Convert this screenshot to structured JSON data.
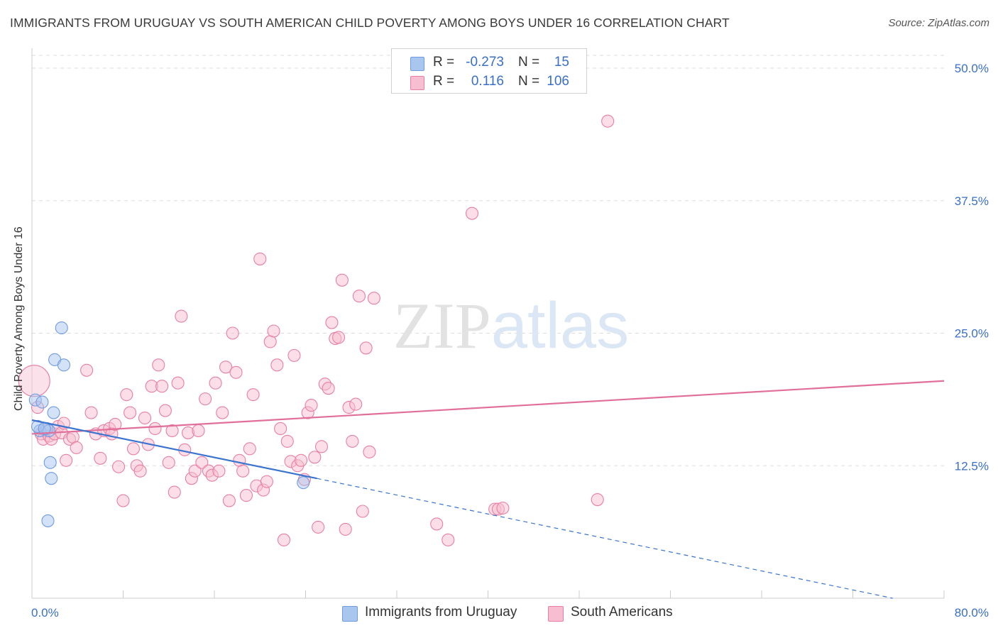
{
  "title": "IMMIGRANTS FROM URUGUAY VS SOUTH AMERICAN CHILD POVERTY AMONG BOYS UNDER 16 CORRELATION CHART",
  "source": "Source: ZipAtlas.com",
  "watermark": "ZIPatlas",
  "legend_stats": [
    {
      "r_label": "R =",
      "r_value": "-0.273",
      "n_label": "N =",
      "n_value": "15",
      "color": "#a9c6ef",
      "border": "#6f9be0"
    },
    {
      "r_label": "R =",
      "r_value": "0.116",
      "n_label": "N =",
      "n_value": "106",
      "color": "#f7bdd0",
      "border": "#e87fa3"
    }
  ],
  "chart_data": {
    "type": "scatter",
    "title": "IMMIGRANTS FROM URUGUAY VS SOUTH AMERICAN CHILD POVERTY AMONG BOYS UNDER 16 CORRELATION CHART",
    "xlabel": "",
    "ylabel": "Child Poverty Among Boys Under 16",
    "xlim": [
      0,
      80
    ],
    "ylim": [
      0,
      50
    ],
    "x_tick_labels": [
      "0.0%",
      "80.0%"
    ],
    "y_ticks": [
      12.5,
      25.0,
      37.5,
      50.0
    ],
    "y_tick_labels": [
      "12.5%",
      "25.0%",
      "37.5%",
      "50.0%"
    ],
    "grid": "horizontal dashed",
    "legend": "bottom-center",
    "series": [
      {
        "name": "Immigrants from Uruguay",
        "color": "#6f9be0",
        "fill": "#a9c6ef",
        "trend": {
          "x0": 0,
          "y0": 16.8,
          "x1": 25,
          "y1": 11.3,
          "dashed_to_x": 75.5,
          "dashed_to_y": 0
        },
        "points": [
          [
            0.3,
            18.7
          ],
          [
            0.7,
            15.8
          ],
          [
            0.9,
            18.5
          ],
          [
            1.3,
            16.0
          ],
          [
            1.5,
            15.8
          ],
          [
            1.6,
            12.8
          ],
          [
            1.7,
            11.3
          ],
          [
            1.4,
            7.3
          ],
          [
            1.9,
            17.5
          ],
          [
            2.0,
            22.5
          ],
          [
            2.8,
            22.0
          ],
          [
            2.6,
            25.5
          ],
          [
            23.8,
            10.9
          ],
          [
            0.5,
            16.2
          ],
          [
            1.1,
            16.0
          ]
        ]
      },
      {
        "name": "South Americans",
        "color": "#e87fa3",
        "fill": "#f7bdd0",
        "trend": {
          "x0": 0,
          "y0": 15.5,
          "x1": 80,
          "y1": 20.5
        },
        "points": [
          [
            0.2,
            20.5
          ],
          [
            0.5,
            18.0
          ],
          [
            0.8,
            15.5
          ],
          [
            1.0,
            15.0
          ],
          [
            1.2,
            15.8
          ],
          [
            1.5,
            15.3
          ],
          [
            1.7,
            15.0
          ],
          [
            2.0,
            15.5
          ],
          [
            2.3,
            16.2
          ],
          [
            2.6,
            15.6
          ],
          [
            2.8,
            16.5
          ],
          [
            3.0,
            13.0
          ],
          [
            3.3,
            15.0
          ],
          [
            3.6,
            15.2
          ],
          [
            3.9,
            14.2
          ],
          [
            4.8,
            21.5
          ],
          [
            5.2,
            17.5
          ],
          [
            5.6,
            15.5
          ],
          [
            6.0,
            13.2
          ],
          [
            6.3,
            15.8
          ],
          [
            6.8,
            16.0
          ],
          [
            7.0,
            15.5
          ],
          [
            7.3,
            16.4
          ],
          [
            7.6,
            12.4
          ],
          [
            8.0,
            9.2
          ],
          [
            8.3,
            19.2
          ],
          [
            8.6,
            17.5
          ],
          [
            8.9,
            14.1
          ],
          [
            9.2,
            12.5
          ],
          [
            9.5,
            12.0
          ],
          [
            9.9,
            17.0
          ],
          [
            10.2,
            14.5
          ],
          [
            10.5,
            20.0
          ],
          [
            10.8,
            16.0
          ],
          [
            11.1,
            22.0
          ],
          [
            11.4,
            20.0
          ],
          [
            11.7,
            17.7
          ],
          [
            12.0,
            12.8
          ],
          [
            12.3,
            15.8
          ],
          [
            12.5,
            10.0
          ],
          [
            12.8,
            20.3
          ],
          [
            13.1,
            26.6
          ],
          [
            13.4,
            14.0
          ],
          [
            13.7,
            15.6
          ],
          [
            14.0,
            11.3
          ],
          [
            14.3,
            12.0
          ],
          [
            14.6,
            15.8
          ],
          [
            14.9,
            12.8
          ],
          [
            15.2,
            18.8
          ],
          [
            15.5,
            12.0
          ],
          [
            15.8,
            11.6
          ],
          [
            16.1,
            20.3
          ],
          [
            16.4,
            12.0
          ],
          [
            16.7,
            17.5
          ],
          [
            17.0,
            21.8
          ],
          [
            17.3,
            9.2
          ],
          [
            17.6,
            25.0
          ],
          [
            17.9,
            21.3
          ],
          [
            18.2,
            13.0
          ],
          [
            18.5,
            12.0
          ],
          [
            18.8,
            9.7
          ],
          [
            19.1,
            14.1
          ],
          [
            19.4,
            19.2
          ],
          [
            19.7,
            10.6
          ],
          [
            20.0,
            32.0
          ],
          [
            20.3,
            10.2
          ],
          [
            20.6,
            11.0
          ],
          [
            20.9,
            24.2
          ],
          [
            21.2,
            25.2
          ],
          [
            21.5,
            22.0
          ],
          [
            21.8,
            16.0
          ],
          [
            22.1,
            5.5
          ],
          [
            22.4,
            14.8
          ],
          [
            22.7,
            12.9
          ],
          [
            23.0,
            22.9
          ],
          [
            23.3,
            12.5
          ],
          [
            23.6,
            13.0
          ],
          [
            23.9,
            11.2
          ],
          [
            24.2,
            17.5
          ],
          [
            24.5,
            18.2
          ],
          [
            24.8,
            13.3
          ],
          [
            25.1,
            6.7
          ],
          [
            25.4,
            14.3
          ],
          [
            25.7,
            20.2
          ],
          [
            26.0,
            19.8
          ],
          [
            26.3,
            26.0
          ],
          [
            26.6,
            24.5
          ],
          [
            26.9,
            24.6
          ],
          [
            27.2,
            30.0
          ],
          [
            27.5,
            6.5
          ],
          [
            27.8,
            18.0
          ],
          [
            28.1,
            14.8
          ],
          [
            28.4,
            18.3
          ],
          [
            28.7,
            28.5
          ],
          [
            29.0,
            8.2
          ],
          [
            29.3,
            23.6
          ],
          [
            29.6,
            13.8
          ],
          [
            30.0,
            28.3
          ],
          [
            35.5,
            7.0
          ],
          [
            36.5,
            5.5
          ],
          [
            38.6,
            36.3
          ],
          [
            40.6,
            8.4
          ],
          [
            40.9,
            8.4
          ],
          [
            41.3,
            8.5
          ],
          [
            49.6,
            9.3
          ],
          [
            50.5,
            45.0
          ]
        ]
      }
    ]
  },
  "legend_bottom": [
    {
      "label": "Immigrants from Uruguay",
      "color": "#a9c6ef",
      "border": "#6f9be0"
    },
    {
      "label": "South Americans",
      "color": "#f7bdd0",
      "border": "#e87fa3"
    }
  ]
}
